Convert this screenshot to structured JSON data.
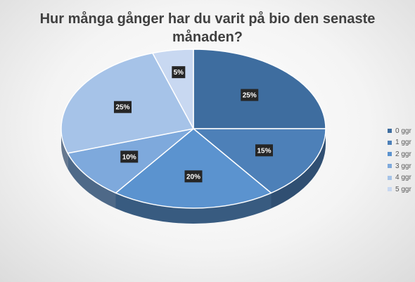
{
  "chart_data": {
    "type": "pie",
    "title_lines": [
      "Hur många gånger har du varit på bio den senaste",
      "månaden?"
    ],
    "categories": [
      "0 ggr",
      "1 ggr",
      "2 ggr",
      "3 ggr",
      "4 ggr",
      "5 ggr"
    ],
    "values": [
      25,
      15,
      20,
      10,
      25,
      5
    ],
    "data_labels": [
      "25%",
      "15%",
      "20%",
      "10%",
      "25%",
      "5%"
    ],
    "colors": [
      "#3e6d9f",
      "#4d80b8",
      "#5b93cf",
      "#7ea9dc",
      "#a6c3e8",
      "#c8d8f1"
    ],
    "legend_position": "right",
    "style": "3d"
  }
}
